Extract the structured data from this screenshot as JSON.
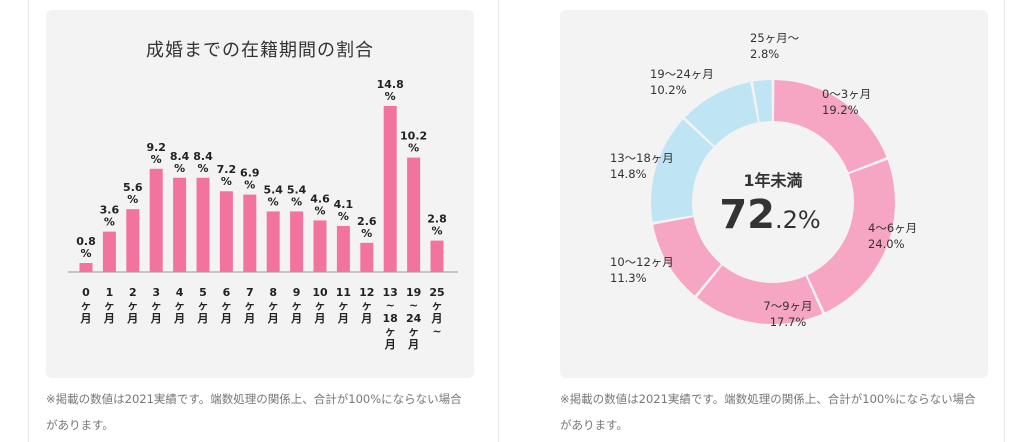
{
  "bar_chart": {
    "title": "成婚までの在籍期間の割合",
    "note_line1": "※掲載の数値は2021実績です。端数処理の関係上、合計が100%にならない場合",
    "note_line2": "があります。"
  },
  "donut_chart": {
    "center_title": "1年未満",
    "center_value_int": "72",
    "center_value_dec": ".2%",
    "note_line1": "※掲載の数値は2021実績です。端数処理の関係上、合計が100%にならない場合",
    "note_line2": "があります。"
  },
  "chart_data": [
    {
      "type": "bar",
      "title": "成婚までの在籍期間の割合",
      "categories": [
        [
          "0",
          "ヶ",
          "月"
        ],
        [
          "1",
          "ヶ",
          "月"
        ],
        [
          "2",
          "ヶ",
          "月"
        ],
        [
          "3",
          "ヶ",
          "月"
        ],
        [
          "4",
          "ヶ",
          "月"
        ],
        [
          "5",
          "ヶ",
          "月"
        ],
        [
          "6",
          "ヶ",
          "月"
        ],
        [
          "7",
          "ヶ",
          "月"
        ],
        [
          "8",
          "ヶ",
          "月"
        ],
        [
          "9",
          "ヶ",
          "月"
        ],
        [
          "10",
          "ヶ",
          "月"
        ],
        [
          "11",
          "ヶ",
          "月"
        ],
        [
          "12",
          "ヶ",
          "月"
        ],
        [
          "13",
          "~",
          "18",
          "ヶ",
          "月"
        ],
        [
          "19",
          "~",
          "24",
          "ヶ",
          "月"
        ],
        [
          "25",
          "ヶ",
          "月",
          "~"
        ]
      ],
      "values": [
        0.8,
        3.6,
        5.6,
        9.2,
        8.4,
        8.4,
        7.2,
        6.9,
        5.4,
        5.4,
        4.6,
        4.1,
        2.6,
        14.8,
        10.2,
        2.8
      ],
      "value_labels": [
        "0.8",
        "3.6",
        "5.6",
        "9.2",
        "8.4",
        "8.4",
        "7.2",
        "6.9",
        "5.4",
        "5.4",
        "4.6",
        "4.1",
        "2.6",
        "14.8",
        "10.2",
        "2.8"
      ],
      "unit": "%",
      "ylim": [
        0,
        14.8
      ],
      "grid": false,
      "color": "#f3739f"
    },
    {
      "type": "pie",
      "donut": true,
      "slices": [
        {
          "label": "0〜3ヶ月",
          "value": 19.2,
          "value_label": "19.2%",
          "color": "#f6a5c3"
        },
        {
          "label": "4〜6ヶ月",
          "value": 24.0,
          "value_label": "24.0%",
          "color": "#f6a5c3"
        },
        {
          "label": "7〜9ヶ月",
          "value": 17.7,
          "value_label": "17.7%",
          "color": "#f6a5c3"
        },
        {
          "label": "10〜12ヶ月",
          "value": 11.3,
          "value_label": "11.3%",
          "color": "#f6a5c3"
        },
        {
          "label": "13〜18ヶ月",
          "value": 14.8,
          "value_label": "14.8%",
          "color": "#bfe5f5"
        },
        {
          "label": "19〜24ヶ月",
          "value": 10.2,
          "value_label": "10.2%",
          "color": "#bfe5f5"
        },
        {
          "label": "25ヶ月〜",
          "value": 2.8,
          "value_label": "2.8%",
          "color": "#bfe5f5"
        }
      ]
    }
  ]
}
